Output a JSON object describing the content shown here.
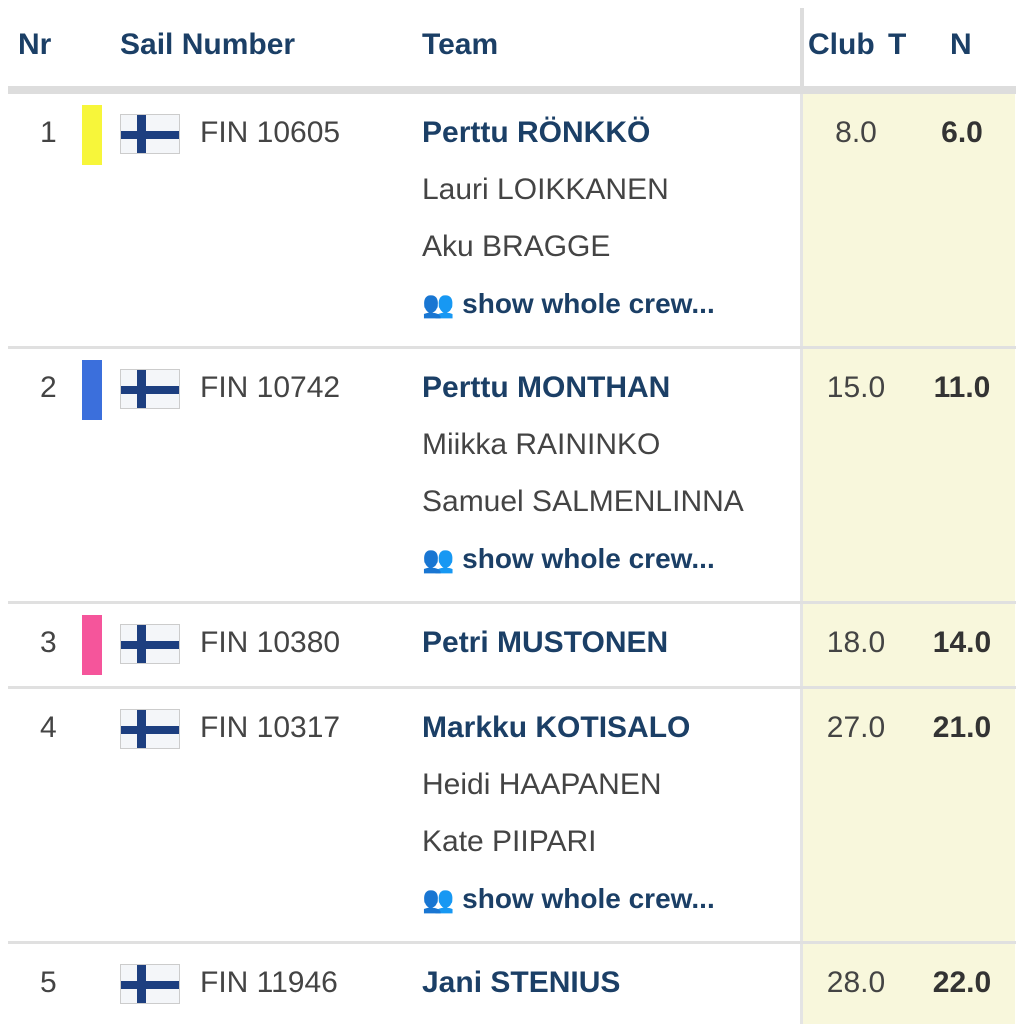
{
  "header": {
    "nr": "Nr",
    "sail": "Sail Number",
    "team": "Team",
    "club": "Club",
    "total": "T",
    "net": "N"
  },
  "crew_link": "show whole crew...",
  "rows": [
    {
      "nr": "1",
      "color": "#f7f63a",
      "sail": "FIN 10605",
      "skipper": "Perttu RÖNKKÖ",
      "crew": [
        "Lauri LOIKKANEN",
        "Aku BRAGGE"
      ],
      "total": "8.0",
      "net": "6.0"
    },
    {
      "nr": "2",
      "color": "#3b6fdc",
      "sail": "FIN 10742",
      "skipper": "Perttu MONTHAN",
      "crew": [
        "Miikka RAININKO",
        "Samuel SALMENLINNA"
      ],
      "total": "15.0",
      "net": "11.0"
    },
    {
      "nr": "3",
      "color": "#f5559b",
      "sail": "FIN 10380",
      "skipper": "Petri MUSTONEN",
      "crew": [],
      "total": "18.0",
      "net": "14.0"
    },
    {
      "nr": "4",
      "color": "",
      "sail": "FIN 10317",
      "skipper": "Markku KOTISALO",
      "crew": [
        "Heidi HAAPANEN",
        "Kate PIIPARI"
      ],
      "total": "27.0",
      "net": "21.0"
    },
    {
      "nr": "5",
      "color": "",
      "sail": "FIN 11946",
      "skipper": "Jani STENIUS",
      "crew": [],
      "total": "28.0",
      "net": "22.0"
    }
  ]
}
